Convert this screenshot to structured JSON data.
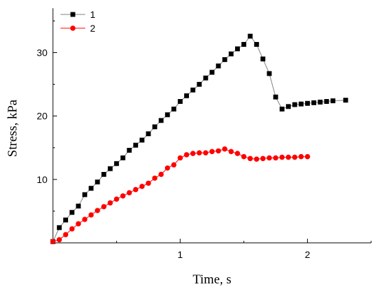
{
  "chart_data": {
    "type": "scatter",
    "xlabel": "Time, s",
    "ylabel": "Stress, kPa",
    "xlim": [
      0,
      2.5
    ],
    "ylim": [
      0,
      37
    ],
    "xticks": [
      1,
      2
    ],
    "xtick_labels": [
      "1",
      "2"
    ],
    "yticks": [
      10,
      20,
      30
    ],
    "ytick_labels": [
      "10",
      "20",
      "30"
    ],
    "legend_position": "top-left",
    "grid": false,
    "series": [
      {
        "name": "1",
        "marker": "square",
        "color": "#000000",
        "line_color": "#808080",
        "x": [
          0.0,
          0.05,
          0.1,
          0.15,
          0.2,
          0.25,
          0.3,
          0.35,
          0.4,
          0.45,
          0.5,
          0.55,
          0.6,
          0.65,
          0.7,
          0.75,
          0.8,
          0.85,
          0.9,
          0.95,
          1.0,
          1.05,
          1.1,
          1.15,
          1.2,
          1.25,
          1.3,
          1.35,
          1.4,
          1.45,
          1.5,
          1.55,
          1.6,
          1.65,
          1.7,
          1.75,
          1.8,
          1.85,
          1.9,
          1.95,
          2.0,
          2.05,
          2.1,
          2.15,
          2.2,
          2.3
        ],
        "y": [
          0.2,
          2.4,
          3.6,
          4.8,
          5.8,
          7.6,
          8.6,
          9.6,
          10.8,
          11.7,
          12.5,
          13.4,
          14.6,
          15.4,
          16.2,
          17.2,
          18.3,
          19.3,
          20.2,
          21.1,
          22.3,
          23.2,
          24.1,
          25.0,
          26.0,
          26.9,
          27.9,
          28.9,
          29.8,
          30.6,
          31.3,
          32.6,
          31.3,
          29.0,
          26.7,
          23.0,
          21.1,
          21.5,
          21.8,
          21.9,
          22.0,
          22.1,
          22.2,
          22.3,
          22.4,
          22.5
        ]
      },
      {
        "name": "2",
        "marker": "circle",
        "color": "#ff0000",
        "line_color": "#ff0000",
        "x": [
          0.0,
          0.05,
          0.1,
          0.15,
          0.2,
          0.25,
          0.3,
          0.35,
          0.4,
          0.45,
          0.5,
          0.55,
          0.6,
          0.65,
          0.7,
          0.75,
          0.8,
          0.85,
          0.9,
          0.95,
          1.0,
          1.05,
          1.1,
          1.15,
          1.2,
          1.25,
          1.3,
          1.35,
          1.4,
          1.45,
          1.5,
          1.55,
          1.6,
          1.65,
          1.7,
          1.75,
          1.8,
          1.85,
          1.9,
          1.95,
          2.0
        ],
        "y": [
          0.2,
          0.5,
          1.3,
          2.2,
          3.0,
          3.7,
          4.4,
          5.1,
          5.7,
          6.3,
          6.9,
          7.4,
          7.9,
          8.4,
          8.9,
          9.4,
          10.2,
          10.8,
          11.8,
          12.3,
          13.4,
          13.9,
          14.1,
          14.2,
          14.2,
          14.4,
          14.5,
          14.8,
          14.4,
          14.1,
          13.6,
          13.3,
          13.2,
          13.3,
          13.4,
          13.4,
          13.5,
          13.5,
          13.5,
          13.6,
          13.6
        ]
      }
    ]
  }
}
